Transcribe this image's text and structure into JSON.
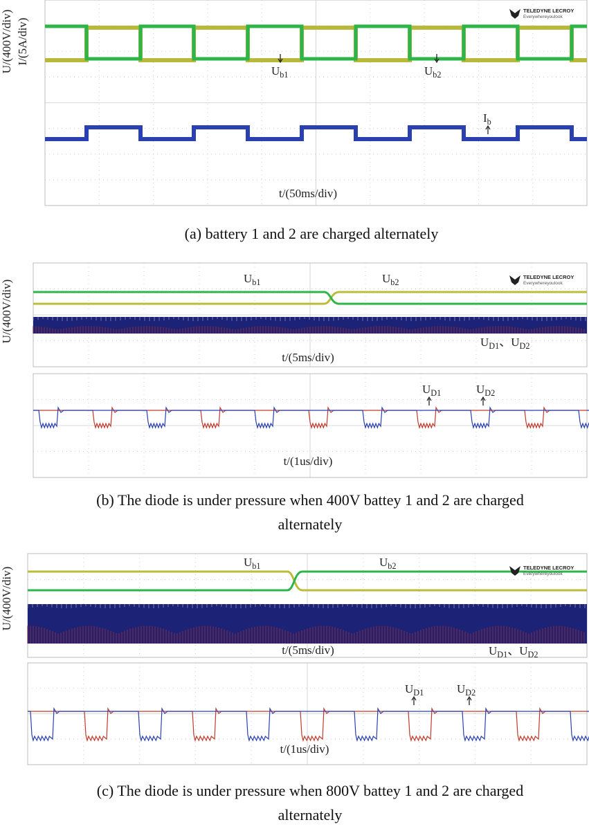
{
  "logo": {
    "brand": "TELEDYNE LECROY",
    "tagline": "Everywhereyoulook"
  },
  "panels": [
    {
      "caption": [
        "(a) battery 1 and 2 are charged alternately"
      ],
      "y_labels": [
        "U/(400V/div)",
        "I/(5A/div)"
      ],
      "screens": [
        {
          "x_label": "t/(50ms/div)",
          "annotations": [
            [
              {
                "text": "U"
              },
              {
                "sub": "b1"
              }
            ],
            [
              {
                "text": "U"
              },
              {
                "sub": "b2"
              }
            ],
            [
              {
                "text": "I"
              },
              {
                "sub": "b"
              }
            ]
          ]
        }
      ]
    },
    {
      "caption": [
        "(b) The diode is under pressure when 400V battey 1 and 2 are charged",
        "alternately"
      ],
      "y_labels": [
        "U/(400V/div)"
      ],
      "screens": [
        {
          "x_label": "t/(5ms/div)",
          "annotations": [
            [
              {
                "text": "U"
              },
              {
                "sub": "b1"
              }
            ],
            [
              {
                "text": "U"
              },
              {
                "sub": "b2"
              }
            ],
            [
              {
                "text": "U"
              },
              {
                "sub": "D1"
              },
              {
                "text": "、U"
              },
              {
                "sub": "D2"
              }
            ]
          ]
        },
        {
          "x_label": "t/(1us/div)",
          "annotations": [
            [
              {
                "text": "U"
              },
              {
                "sub": "D1"
              }
            ],
            [
              {
                "text": "U"
              },
              {
                "sub": "D2"
              }
            ]
          ]
        }
      ]
    },
    {
      "caption": [
        "(c) The diode is under pressure when 800V battey 1 and 2 are charged",
        "alternately"
      ],
      "y_labels": [
        "U/(400V/div)"
      ],
      "screens": [
        {
          "x_label": "t/(5ms/div)",
          "annotations": [
            [
              {
                "text": "U"
              },
              {
                "sub": "b1"
              }
            ],
            [
              {
                "text": "U"
              },
              {
                "sub": "b2"
              }
            ],
            [
              {
                "text": "U"
              },
              {
                "sub": "D1"
              },
              {
                "text": "、U"
              },
              {
                "sub": "D2"
              }
            ]
          ]
        },
        {
          "x_label": "t/(1us/div)",
          "annotations": [
            [
              {
                "text": "U"
              },
              {
                "sub": "D1"
              }
            ],
            [
              {
                "text": "U"
              },
              {
                "sub": "D2"
              }
            ]
          ]
        }
      ]
    }
  ]
}
